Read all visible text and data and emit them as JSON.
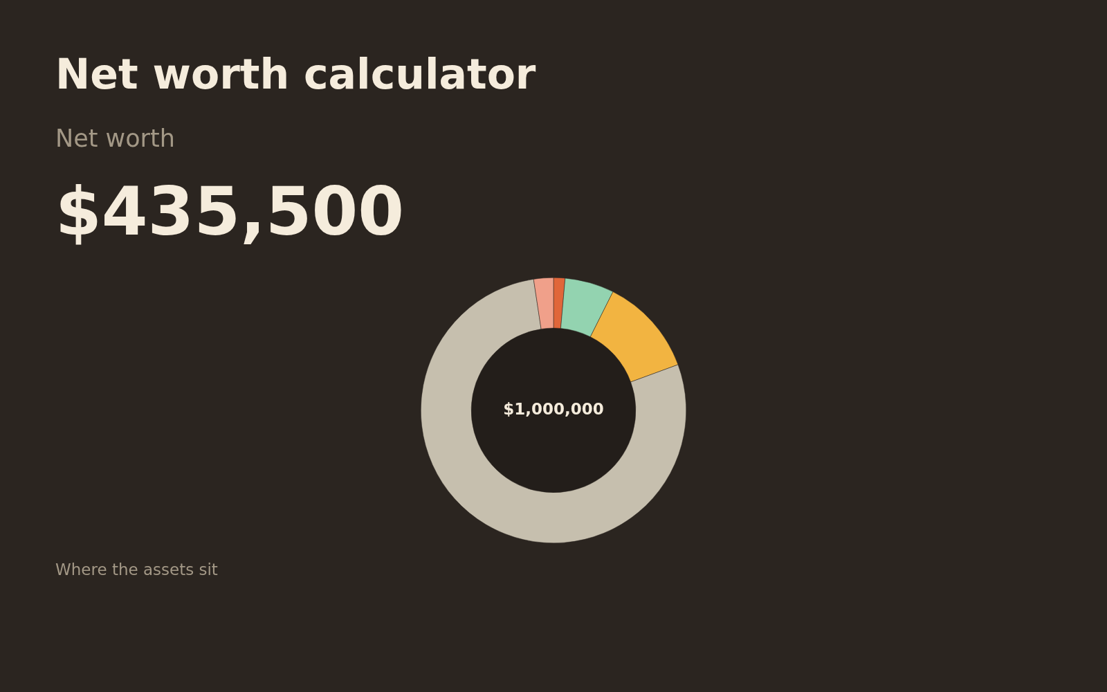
{
  "chart_data": {
    "type": "donut",
    "title": "Net worth calculator",
    "subtitle": "Net worth",
    "categories": [
      null,
      null,
      null,
      null,
      null
    ],
    "values": [
      1.4,
      6,
      12,
      78.2,
      2.4
    ],
    "colors": [
      "#e0663a",
      "#93d3b0",
      "#f2b441",
      "#c6bfae",
      "#f0a08a"
    ],
    "annotations": [
      "$435,500",
      "$1,000,000",
      "Where the assets sit"
    ],
    "legend": false
  }
}
